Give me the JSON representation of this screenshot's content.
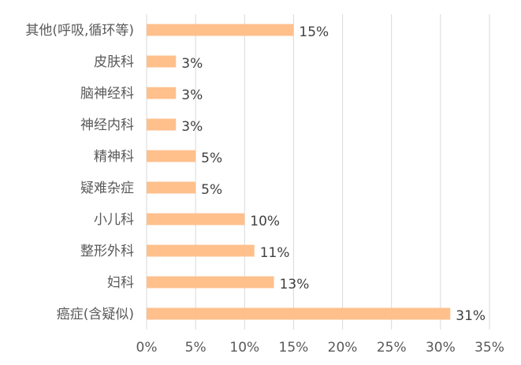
{
  "chart_data": {
    "type": "bar",
    "orientation": "horizontal",
    "categories": [
      "其他(呼吸,循环等)",
      "皮肤科",
      "脑神经科",
      "神经内科",
      "精神科",
      "疑难杂症",
      "小儿科",
      "整形外科",
      "妇科",
      "癌症(含疑似)"
    ],
    "values": [
      15,
      3,
      3,
      3,
      5,
      5,
      10,
      11,
      13,
      31
    ],
    "data_labels": [
      "15%",
      "3%",
      "3%",
      "3%",
      "5%",
      "5%",
      "10%",
      "11%",
      "13%",
      "31%"
    ],
    "x_ticks": [
      "0%",
      "5%",
      "10%",
      "15%",
      "20%",
      "25%",
      "30%",
      "35%"
    ],
    "xlim": [
      0,
      35
    ],
    "grid": true,
    "bar_color": "#FFC08C",
    "title": "",
    "xlabel": "",
    "ylabel": ""
  }
}
